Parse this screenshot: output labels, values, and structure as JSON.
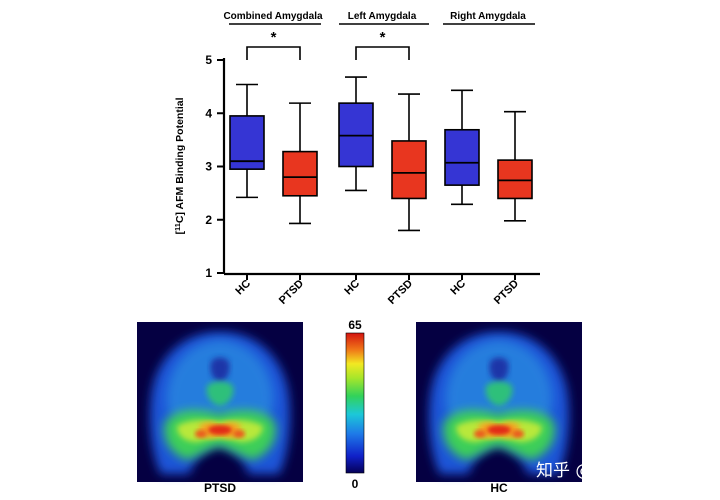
{
  "chart_data": {
    "type": "box",
    "ylabel_super": "11",
    "ylabel_main": "C] AFM Binding Potential",
    "ylim": [
      1,
      5
    ],
    "yticks": [
      1,
      2,
      3,
      4,
      5
    ],
    "grid": false,
    "groups": [
      {
        "title": "Combined Amygdala",
        "significance": "*"
      },
      {
        "title": "Left Amygdala",
        "significance": "*"
      },
      {
        "title": "Right Amygdala",
        "significance": ""
      }
    ],
    "boxes": [
      {
        "group": 0,
        "label": "HC",
        "color": "#3535d4",
        "min": 2.42,
        "q1": 2.95,
        "median": 3.1,
        "q3": 3.95,
        "max": 4.54
      },
      {
        "group": 0,
        "label": "PTSD",
        "color": "#e8361f",
        "min": 1.93,
        "q1": 2.45,
        "median": 2.8,
        "q3": 3.28,
        "max": 4.19
      },
      {
        "group": 1,
        "label": "HC",
        "color": "#3535d4",
        "min": 2.55,
        "q1": 3.0,
        "median": 3.58,
        "q3": 4.19,
        "max": 4.68
      },
      {
        "group": 1,
        "label": "PTSD",
        "color": "#e8361f",
        "min": 1.8,
        "q1": 2.4,
        "median": 2.88,
        "q3": 3.48,
        "max": 4.36
      },
      {
        "group": 2,
        "label": "HC",
        "color": "#3535d4",
        "min": 2.29,
        "q1": 2.65,
        "median": 3.07,
        "q3": 3.69,
        "max": 4.43
      },
      {
        "group": 2,
        "label": "PTSD",
        "color": "#e8361f",
        "min": 1.98,
        "q1": 2.4,
        "median": 2.74,
        "q3": 3.12,
        "max": 4.03
      }
    ]
  },
  "images": {
    "left_label": "PTSD",
    "right_label": "HC",
    "colorbar_max": "65",
    "colorbar_min": "0"
  },
  "watermark": "知乎 @耗子领袖"
}
